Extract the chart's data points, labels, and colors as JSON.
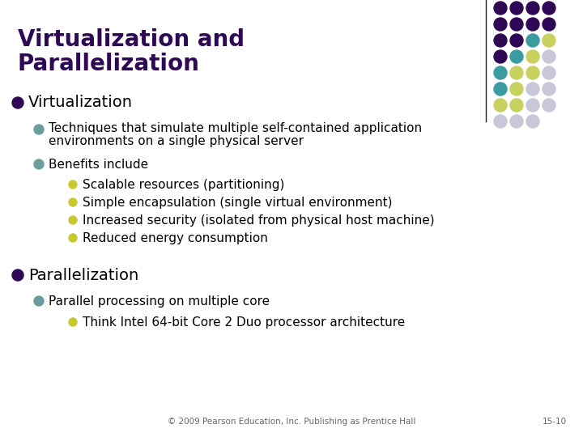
{
  "title_line1": "Virtualization and",
  "title_line2": "Parallelization",
  "title_color": "#2E0854",
  "background_color": "#FFFFFF",
  "bullet1_text": "Virtualization",
  "bullet2_text": "Parallelization",
  "bullet_color": "#2E0854",
  "sub1_line1": "Techniques that simulate multiple self-contained application",
  "sub1_line2": "environments on a single physical server",
  "sub2_text": "Benefits include",
  "sub_sub_items": [
    "Scalable resources (partitioning)",
    "Simple encapsulation (single virtual environment)",
    "Increased security (isolated from physical host machine)",
    "Reduced energy consumption"
  ],
  "sub3_text": "Parallel processing on multiple core",
  "sub_sub3_text": "Think Intel 64-bit Core 2 Duo processor architecture",
  "footer_text": "© 2009 Pearson Education, Inc. Publishing as Prentice Hall",
  "footer_page": "15-10",
  "footer_color": "#666666",
  "dot_colors_grid": [
    [
      "#2E0854",
      "#2E0854",
      "#2E0854",
      "#2E0854"
    ],
    [
      "#2E0854",
      "#2E0854",
      "#2E0854",
      "#2E0854"
    ],
    [
      "#2E0854",
      "#2E0854",
      "#3B9BA0",
      "#C8D060"
    ],
    [
      "#2E0854",
      "#3B9BA0",
      "#C8D060",
      "#C8C8D8"
    ],
    [
      "#3B9BA0",
      "#C8D060",
      "#C8D060",
      "#C8C8D8"
    ],
    [
      "#3B9BA0",
      "#C8D060",
      "#C8C8D8",
      "#C8C8D8"
    ],
    [
      "#C8D060",
      "#C8D060",
      "#C8C8D8",
      "#C8C8D8"
    ],
    [
      "#C8C8D8",
      "#C8C8D8",
      "#C8C8D8"
    ]
  ],
  "title_fontsize": 20,
  "header_fontsize": 14,
  "body_fontsize": 11,
  "footer_fontsize": 7.5
}
